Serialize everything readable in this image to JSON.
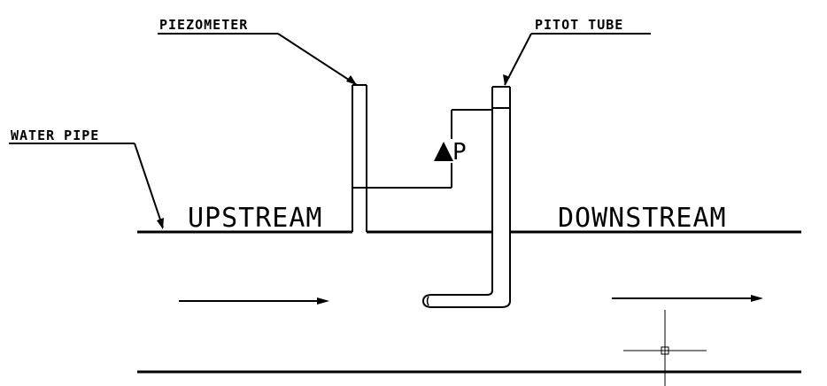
{
  "labels": {
    "piezometer": "PIEZOMETER",
    "pitot_tube": "PITOT TUBE",
    "water_pipe": "WATER PIPE",
    "upstream": "UPSTREAM",
    "downstream": "DOWNSTREAM",
    "pressure_difference": "P"
  },
  "icons": {
    "delta_symbol": "filled-triangle",
    "flow_arrows": "right-arrow",
    "cursor": "crosshair-cursor-icon"
  },
  "colors": {
    "line": "#000000",
    "background": "#ffffff"
  }
}
